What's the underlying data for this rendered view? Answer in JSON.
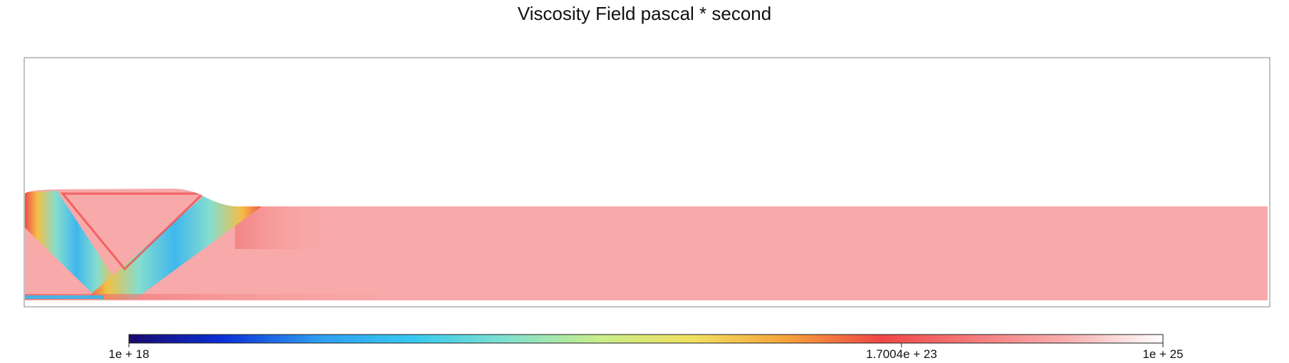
{
  "chart_data": {
    "type": "heatmap",
    "title": "Viscosity Field pascal * second",
    "xlabel": "",
    "ylabel": "",
    "colorbar": {
      "scale": "log",
      "min": 1e+18,
      "max": 1e+25,
      "tick_values": [
        1e+18,
        1.7004e+23,
        1e+25
      ],
      "tick_labels": [
        "1e + 18",
        "1.7004e + 23",
        "1e + 25"
      ],
      "colormap": [
        "#1a0a6e",
        "#0a2fd6",
        "#2f9cf0",
        "#36c8f0",
        "#7fe0d0",
        "#c9ee8a",
        "#f0e060",
        "#f5a23a",
        "#f04646",
        "#f47c7c",
        "#f8b0b0",
        "#ffffff"
      ]
    },
    "field_regions": [
      {
        "name": "matrix",
        "value": 1e+24
      },
      {
        "name": "shear-band-left",
        "value": 1e+20
      },
      {
        "name": "shear-band-right",
        "value": 1e+20
      },
      {
        "name": "band-edges",
        "value": 1e+23
      }
    ],
    "grid": false,
    "legend": "colorbar-bottom"
  }
}
